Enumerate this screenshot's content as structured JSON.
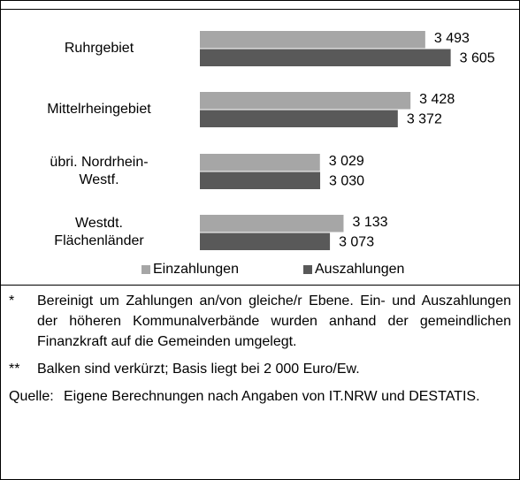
{
  "chart_data": {
    "type": "barh",
    "categories": [
      "Ruhrgebiet",
      "Mittelrheingebiet",
      "übri. Nordrhein-\nWestf.",
      "Westdt.\nFlächenländer"
    ],
    "series": [
      {
        "name": "Einzahlungen",
        "color": "#a6a6a6",
        "values": [
          3493,
          3428,
          3029,
          3133
        ],
        "value_labels": [
          "3 493",
          "3 428",
          "3 029",
          "3 133"
        ]
      },
      {
        "name": "Auszahlungen",
        "color": "#595959",
        "values": [
          3605,
          3372,
          3030,
          3073
        ],
        "value_labels": [
          "3 605",
          "3 372",
          "3 030",
          "3 073"
        ]
      }
    ],
    "xlim": [
      2500,
      3700
    ],
    "legend": "bottom"
  },
  "notes": [
    {
      "marker": "*",
      "text": "Bereinigt um Zahlungen an/von gleiche/r Ebene. Ein- und Auszahlungen der höheren Kommunalverbände wurden anhand der gemeindlichen Finanzkraft auf die Gemeinden umgelegt."
    },
    {
      "marker": "**",
      "text": "Balken sind verkürzt; Basis liegt bei 2 000 Euro/Ew."
    },
    {
      "marker": "Quelle:",
      "text": "Eigene Berechnungen nach Angaben von IT.NRW und DESTATIS."
    }
  ]
}
